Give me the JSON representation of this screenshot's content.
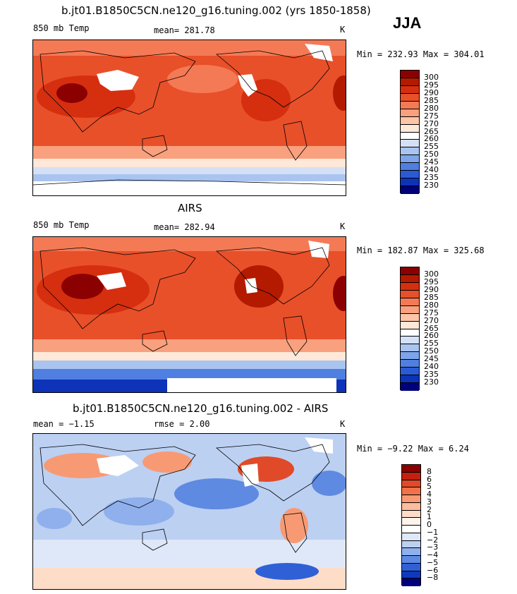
{
  "season": "JJA",
  "panels": [
    {
      "title": "b.jt01.B1850C5CN.ne120_g16.tuning.002 (yrs 1850-1858)",
      "left": "850 mb Temp",
      "center": "mean=  281.78",
      "units": "K",
      "minmax": "Min = 232.93 Max = 304.01"
    },
    {
      "title": "AIRS",
      "left": "850 mb Temp",
      "center": "mean=  282.94",
      "units": "K",
      "minmax": "Min = 182.87 Max = 325.68"
    },
    {
      "title": "b.jt01.B1850C5CN.ne120_g16.tuning.002 - AIRS",
      "left": "mean =   −1.15",
      "center": "rmse =    2.00",
      "units": "K",
      "minmax": "Min =  −9.22 Max =    6.24"
    }
  ],
  "colorbars": {
    "temp": {
      "labels": [
        "300",
        "295",
        "290",
        "285",
        "280",
        "275",
        "270",
        "265",
        "260",
        "255",
        "250",
        "245",
        "240",
        "235",
        "230"
      ],
      "colors": [
        "#8b0000",
        "#b31a00",
        "#d52f10",
        "#e8502a",
        "#f47a55",
        "#f9a07e",
        "#fcc5a8",
        "#ffe8d8",
        "#ffffff",
        "#d4e0f6",
        "#aac4f0",
        "#7ea5ea",
        "#4f7fe0",
        "#2a5ad4",
        "#0c33b8",
        "#00007a"
      ]
    },
    "diff": {
      "labels": [
        "8",
        "6",
        "5",
        "4",
        "3",
        "2",
        "1",
        "0",
        "−1",
        "−2",
        "−3",
        "−4",
        "−5",
        "−6",
        "−8"
      ],
      "colors": [
        "#8b0000",
        "#c42010",
        "#e04a28",
        "#f07248",
        "#f79a74",
        "#fbbd9e",
        "#fddcc8",
        "#fff4ec",
        "#ffffff",
        "#dfe8f8",
        "#bcd0f2",
        "#8fb0ec",
        "#5f8ae2",
        "#3060d6",
        "#0f38bc",
        "#00007a"
      ]
    }
  }
}
